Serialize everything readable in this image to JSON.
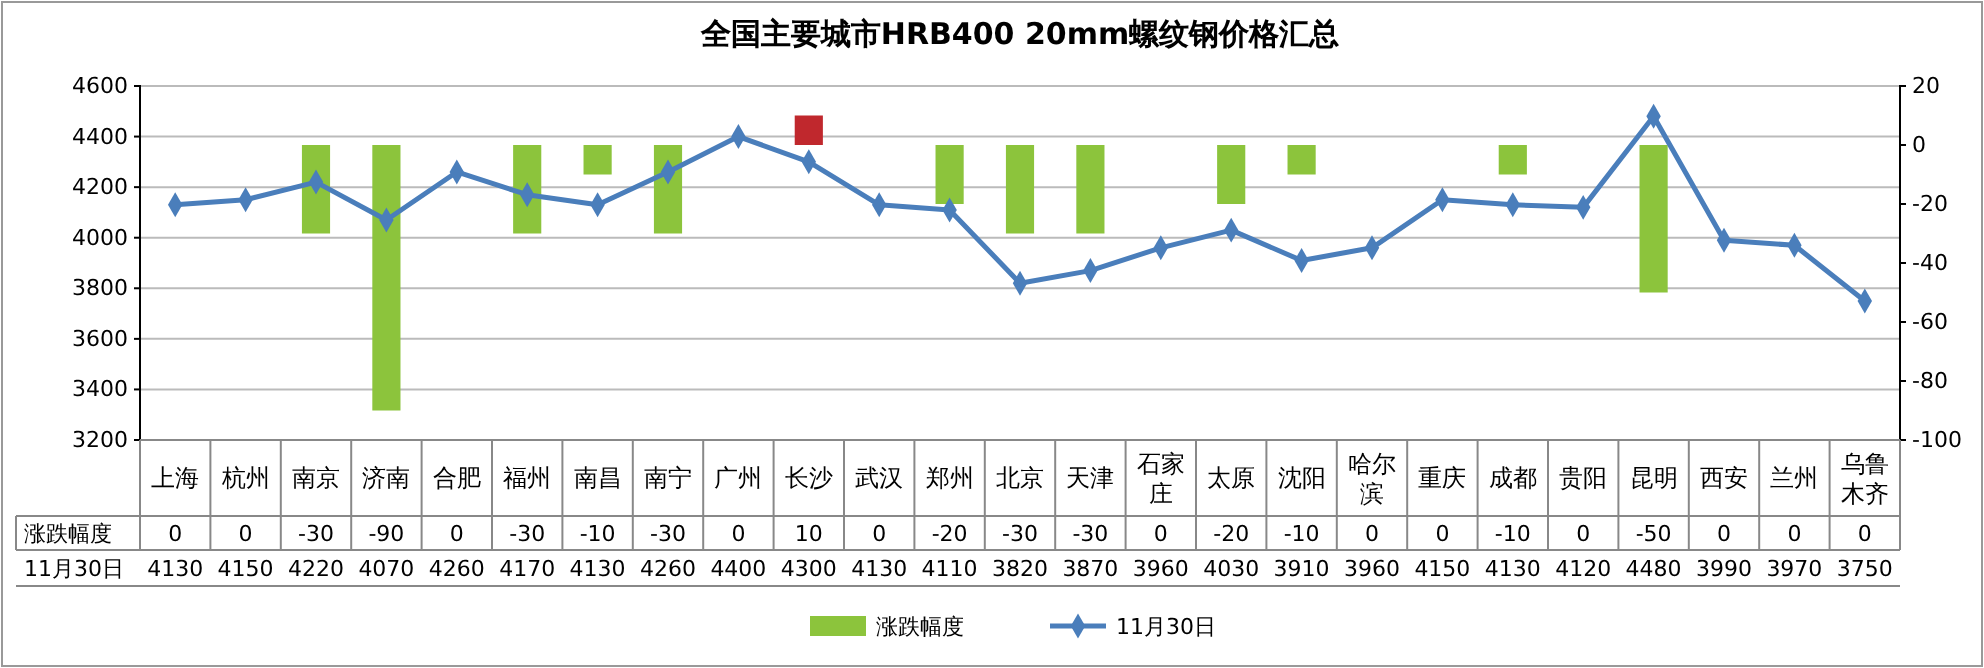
{
  "chart_data": {
    "type": "bar",
    "title": "全国主要城市HRB400 20mm螺纹钢价格汇总",
    "categories": [
      "上海",
      "杭州",
      "南京",
      "济南",
      "合肥",
      "福州",
      "南昌",
      "南宁",
      "广州",
      "长沙",
      "武汉",
      "郑州",
      "北京",
      "天津",
      "石家庄",
      "太原",
      "沈阳",
      "哈尔滨",
      "重庆",
      "成都",
      "贵阳",
      "昆明",
      "西安",
      "兰州",
      "乌鲁木齐"
    ],
    "series": [
      {
        "name": "涨跌幅度",
        "axis": "y2",
        "color": "#8cc43c",
        "colors": [
          "#8cc43c",
          "#8cc43c",
          "#8cc43c",
          "#8cc43c",
          "#8cc43c",
          "#8cc43c",
          "#8cc43c",
          "#8cc43c",
          "#8cc43c",
          "#c0282d",
          "#8cc43c",
          "#8cc43c",
          "#8cc43c",
          "#8cc43c",
          "#8cc43c",
          "#8cc43c",
          "#8cc43c",
          "#8cc43c",
          "#8cc43c",
          "#8cc43c",
          "#8cc43c",
          "#8cc43c",
          "#8cc43c",
          "#8cc43c",
          "#8cc43c"
        ],
        "values": [
          0,
          0,
          -30,
          -90,
          0,
          -30,
          -10,
          -30,
          0,
          10,
          0,
          -20,
          -30,
          -30,
          0,
          -20,
          -10,
          0,
          0,
          -10,
          0,
          -50,
          0,
          0,
          0
        ]
      },
      {
        "name": "11月30日",
        "type": "line",
        "color": "#4a7ebb",
        "values": [
          4130,
          4150,
          4220,
          4070,
          4260,
          4170,
          4130,
          4260,
          4400,
          4300,
          4130,
          4110,
          3820,
          3870,
          3960,
          4030,
          3910,
          3960,
          4150,
          4130,
          4120,
          4480,
          3990,
          3970,
          3750
        ]
      }
    ],
    "ylim": [
      3200,
      4600
    ],
    "yticks": [
      3200,
      3400,
      3600,
      3800,
      4000,
      4200,
      4400,
      4600
    ],
    "y2lim": [
      -100,
      20
    ],
    "y2ticks": [
      -100,
      -80,
      -60,
      -40,
      -20,
      0,
      20
    ],
    "grid": "y",
    "legend": "bottom",
    "marker": "diamond",
    "data_labels": true
  }
}
